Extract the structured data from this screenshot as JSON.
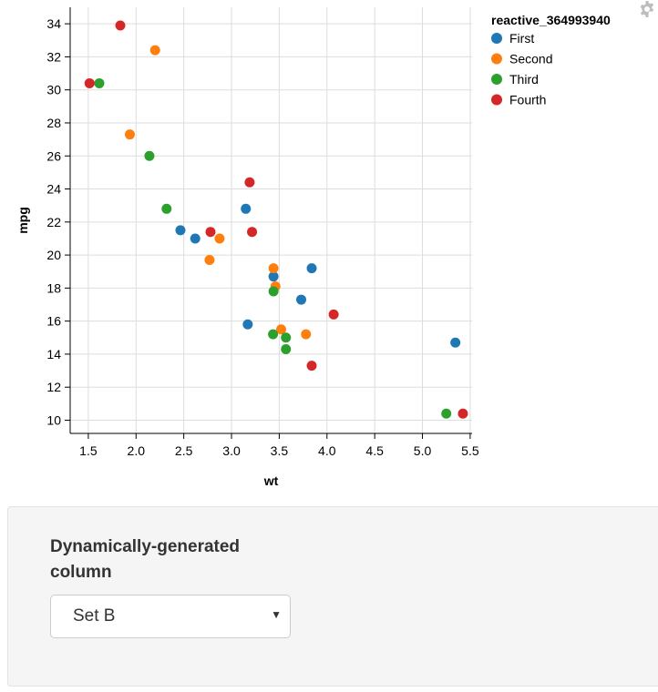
{
  "chart_data": {
    "type": "scatter",
    "title": "",
    "xlabel": "wt",
    "ylabel": "mpg",
    "xlim": [
      1.31,
      5.52
    ],
    "ylim": [
      9.2,
      35.0
    ],
    "x_ticks": [
      "1.5",
      "2.0",
      "2.5",
      "3.0",
      "3.5",
      "4.0",
      "4.5",
      "5.0",
      "5.5"
    ],
    "x_tick_values": [
      1.5,
      2.0,
      2.5,
      3.0,
      3.5,
      4.0,
      4.5,
      5.0,
      5.5
    ],
    "y_ticks": [
      "10",
      "12",
      "14",
      "16",
      "18",
      "20",
      "22",
      "24",
      "26",
      "28",
      "30",
      "32",
      "34"
    ],
    "y_tick_values": [
      10,
      12,
      14,
      16,
      18,
      20,
      22,
      24,
      26,
      28,
      30,
      32,
      34
    ],
    "grid": true,
    "legend_title": "reactive_364993940",
    "legend_position": "right",
    "series": [
      {
        "name": "First",
        "color": "#1f77b4",
        "x": [
          2.465,
          2.62,
          3.15,
          3.44,
          3.73,
          3.84,
          3.17,
          5.345
        ],
        "y": [
          21.5,
          21.0,
          22.8,
          18.7,
          17.3,
          19.2,
          15.8,
          14.7
        ]
      },
      {
        "name": "Second",
        "color": "#ff7f0e",
        "x": [
          2.2,
          1.935,
          2.77,
          2.875,
          3.44,
          3.46,
          3.52,
          3.78
        ],
        "y": [
          32.4,
          27.3,
          19.7,
          21.0,
          19.2,
          18.1,
          15.5,
          15.2
        ]
      },
      {
        "name": "Third",
        "color": "#2ca02c",
        "x": [
          1.615,
          2.14,
          2.32,
          3.435,
          3.44,
          3.57,
          3.57,
          5.25
        ],
        "y": [
          30.4,
          26.0,
          22.8,
          15.2,
          17.8,
          15.0,
          14.3,
          10.4
        ]
      },
      {
        "name": "Fourth",
        "color": "#d62728",
        "x": [
          1.835,
          1.513,
          2.78,
          3.19,
          3.215,
          3.84,
          4.07,
          5.424
        ],
        "y": [
          33.9,
          30.4,
          21.4,
          24.4,
          21.4,
          13.3,
          16.4,
          10.4
        ]
      }
    ]
  },
  "icons": {
    "settings": "gear-icon"
  },
  "control": {
    "label": "Dynamically-generated column",
    "selected": "Set B",
    "caret": "▼"
  }
}
